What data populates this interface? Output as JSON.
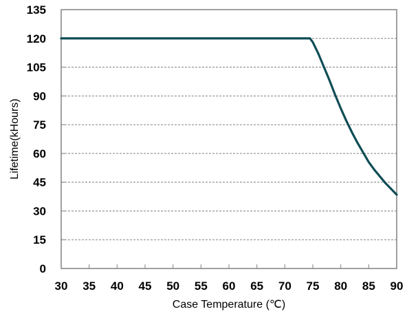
{
  "chart_data": {
    "type": "line",
    "xlabel": "Case Temperature (℃)",
    "ylabel": "Lifetime(kHours)",
    "xlim": [
      30,
      90
    ],
    "ylim": [
      0,
      135
    ],
    "x_ticks": [
      30,
      35,
      40,
      45,
      50,
      55,
      60,
      65,
      70,
      75,
      80,
      85,
      90
    ],
    "y_ticks": [
      0,
      15,
      30,
      45,
      60,
      75,
      90,
      105,
      120,
      135
    ],
    "grid": "horizontal-dashed",
    "colors": {
      "line": "#0f4d55",
      "frame": "#808080",
      "grid": "#808080"
    },
    "series": [
      {
        "x": [
          30,
          74.5,
          75,
          76,
          77,
          78,
          79,
          80,
          81,
          82,
          83,
          84,
          85,
          86,
          87,
          88,
          89,
          90
        ],
        "values": [
          120,
          120,
          118,
          112,
          105,
          98,
          90.5,
          83.5,
          77,
          71,
          65.5,
          60.5,
          55.5,
          51.5,
          48,
          44.5,
          41.5,
          38.5
        ]
      }
    ]
  }
}
